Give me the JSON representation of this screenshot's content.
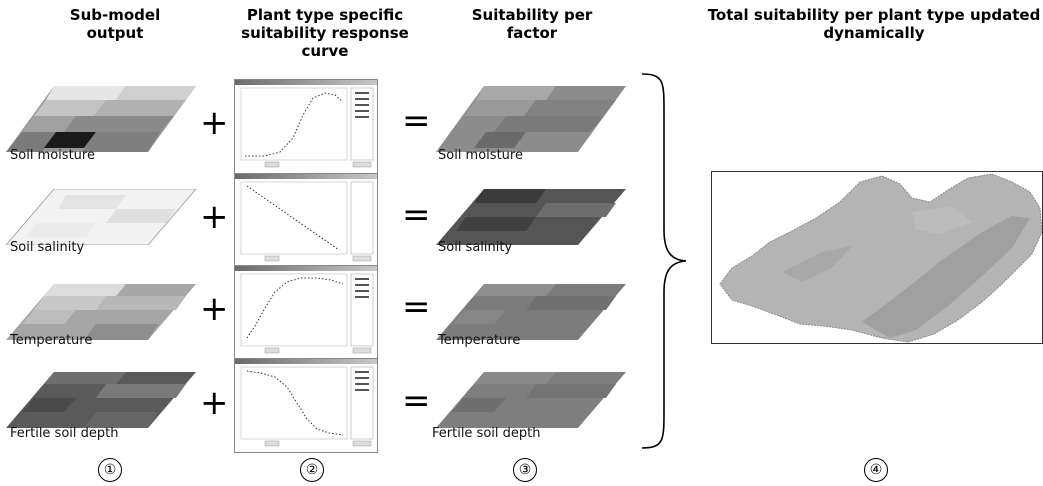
{
  "headers": {
    "col1": "Sub-model output",
    "col2": "Plant type specific suitability response curve",
    "col3": "Suitability per factor",
    "col4": "Total suitability per plant type updated dynamically"
  },
  "operators": {
    "plus": "+",
    "equals": "="
  },
  "rows": [
    {
      "input_label": "Soil moisture",
      "output_label": "Soil moisture"
    },
    {
      "input_label": "Soil salinity",
      "output_label": "Soil salinity"
    },
    {
      "input_label": "Temperature",
      "output_label": "Temperature"
    },
    {
      "input_label": "Fertile soil depth",
      "output_label": "Fertile soil depth"
    }
  ],
  "step_numbers": [
    "①",
    "②",
    "③",
    "④"
  ]
}
